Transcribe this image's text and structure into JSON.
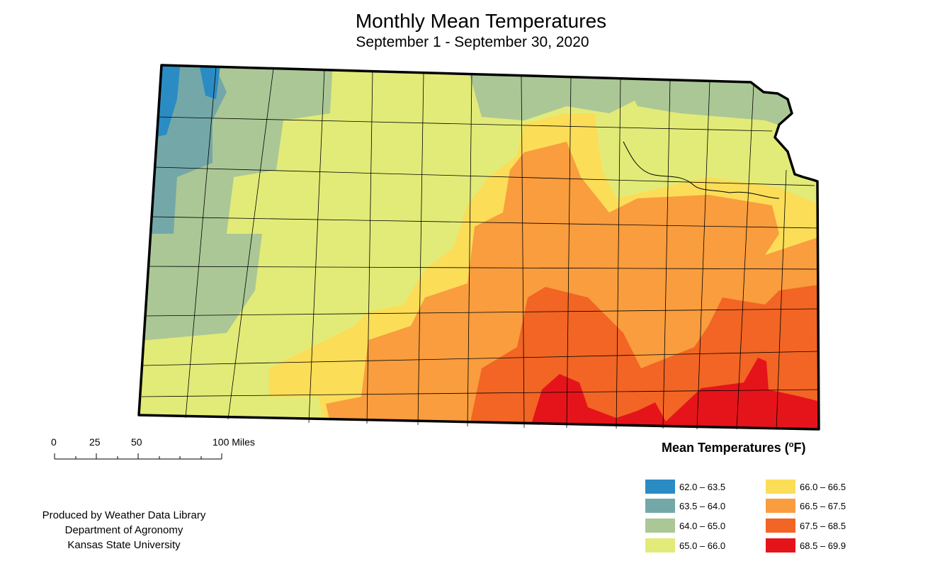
{
  "title": "Monthly Mean Temperatures",
  "subtitle": "September 1 - September 30, 2020",
  "legend": {
    "title": "Mean Temperatures (",
    "unit_sup": "o",
    "unit_suffix": "F)",
    "classes": [
      {
        "label": "62.0 – 63.5",
        "color": "#2b8cc4"
      },
      {
        "label": "63.5 – 64.0",
        "color": "#74a8a8"
      },
      {
        "label": "64.0 – 65.0",
        "color": "#abc796"
      },
      {
        "label": "65.0 – 66.0",
        "color": "#e2eb78"
      },
      {
        "label": "66.0 – 66.5",
        "color": "#fbdd58"
      },
      {
        "label": "66.5 – 67.5",
        "color": "#f99d3e"
      },
      {
        "label": "67.5 – 68.5",
        "color": "#f26524"
      },
      {
        "label": "68.5 – 69.9",
        "color": "#e5141b"
      }
    ]
  },
  "scale_bar": {
    "labels": [
      "0",
      "25",
      "50",
      "100 Miles"
    ]
  },
  "credits": {
    "line1": "Produced by Weather Data Library",
    "line2": "Department of Agronomy",
    "line3": "Kansas State University"
  }
}
